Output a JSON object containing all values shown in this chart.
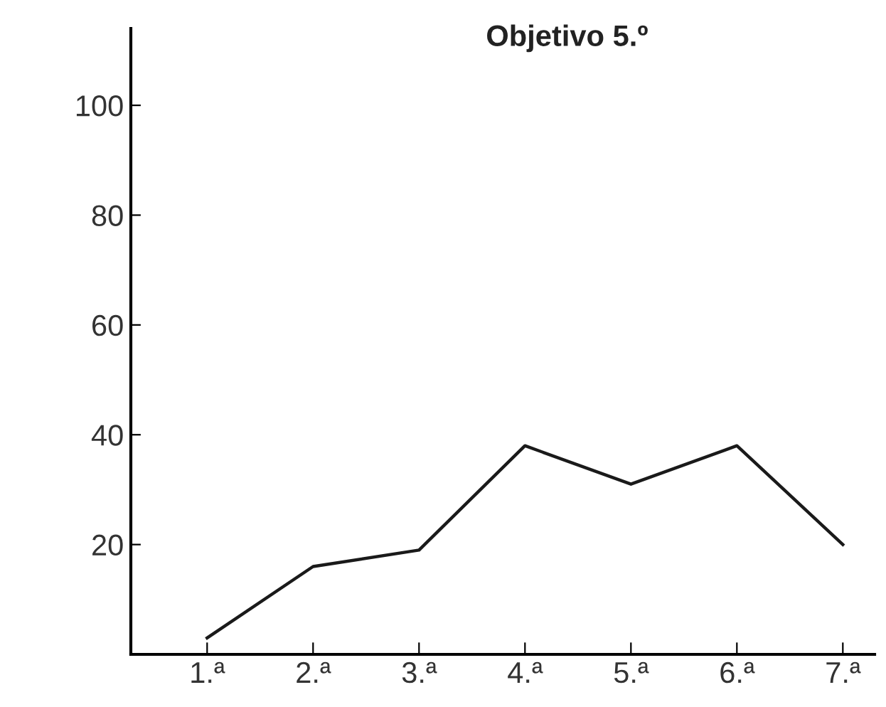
{
  "chart_data": {
    "type": "line",
    "title": "Objetivo 5.º",
    "categories": [
      "1.ª",
      "2.ª",
      "3.ª",
      "4.ª",
      "5.ª",
      "6.ª",
      "7.ª"
    ],
    "series": [
      {
        "color": "#1a1a1a",
        "values": [
          3,
          16,
          19,
          38,
          31,
          38,
          20
        ]
      }
    ],
    "ylim": [
      0,
      114
    ],
    "yticks": [
      20,
      40,
      60,
      80,
      100
    ],
    "grid": false,
    "legend": false,
    "marker": "none",
    "line_style": "solid"
  }
}
